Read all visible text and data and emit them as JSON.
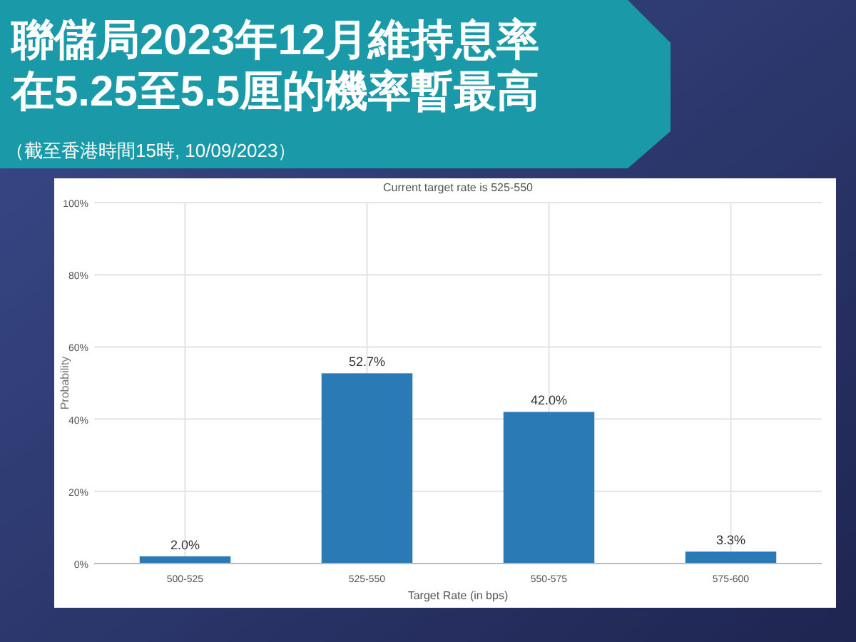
{
  "chart_data": {
    "type": "bar",
    "title": "聯儲局2023年12月維持息率在5.25至5.5厘的機率暫最高",
    "subtitle": "Current target rate is 525-550",
    "xlabel": "Target Rate (in bps)",
    "ylabel": "Probability",
    "annotations": [
      "（截至香港時間15時, 10/09/2023）"
    ],
    "categories": [
      "500-525",
      "525-550",
      "550-575",
      "575-600"
    ],
    "values": [
      2.0,
      52.7,
      42.0,
      3.3
    ],
    "value_labels": [
      "2.0%",
      "52.7%",
      "42.0%",
      "3.3%"
    ],
    "color": "#2a7ab5",
    "ylim": [
      0,
      100
    ],
    "yticks": [
      {
        "value": 0,
        "label": "0%"
      },
      {
        "value": 20,
        "label": "20%"
      },
      {
        "value": 40,
        "label": "40%"
      },
      {
        "value": 60,
        "label": "60%"
      },
      {
        "value": 80,
        "label": "80%"
      },
      {
        "value": 100,
        "label": "100%"
      }
    ],
    "grid": true
  }
}
